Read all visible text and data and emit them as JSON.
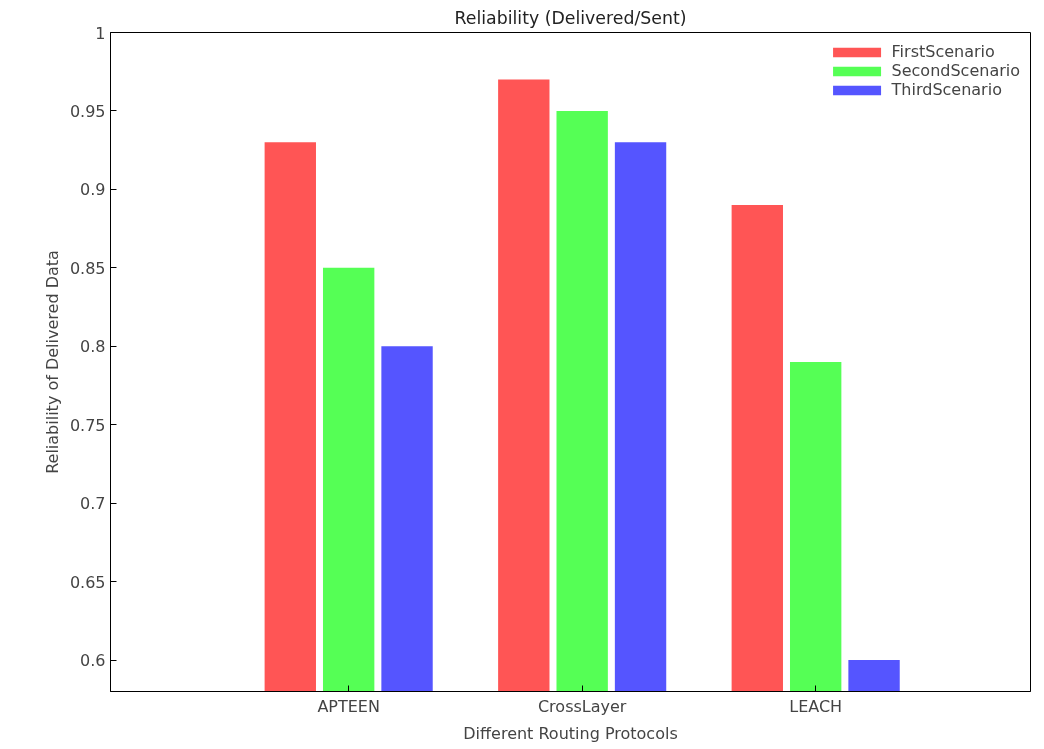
{
  "chart_data": {
    "type": "bar",
    "title": "Reliability (Delivered/Sent)",
    "xlabel": "Different Routing Protocols",
    "ylabel": "Reliability of Delivered Data",
    "categories": [
      "APTEEN",
      "CrossLayer",
      "LEACH"
    ],
    "series": [
      {
        "name": "FirstScenario",
        "color": "#ff5555",
        "values": [
          0.93,
          0.97,
          0.89
        ]
      },
      {
        "name": "SecondScenario",
        "color": "#55ff55",
        "values": [
          0.85,
          0.95,
          0.79
        ]
      },
      {
        "name": "ThirdScenario",
        "color": "#5555ff",
        "values": [
          0.8,
          0.93,
          0.6
        ]
      }
    ],
    "ylim": [
      0.58,
      1
    ],
    "yticks": [
      0.6,
      0.65,
      0.7,
      0.75,
      0.8,
      0.85,
      0.9,
      0.95,
      1
    ],
    "grid": false,
    "legend": "top right"
  }
}
